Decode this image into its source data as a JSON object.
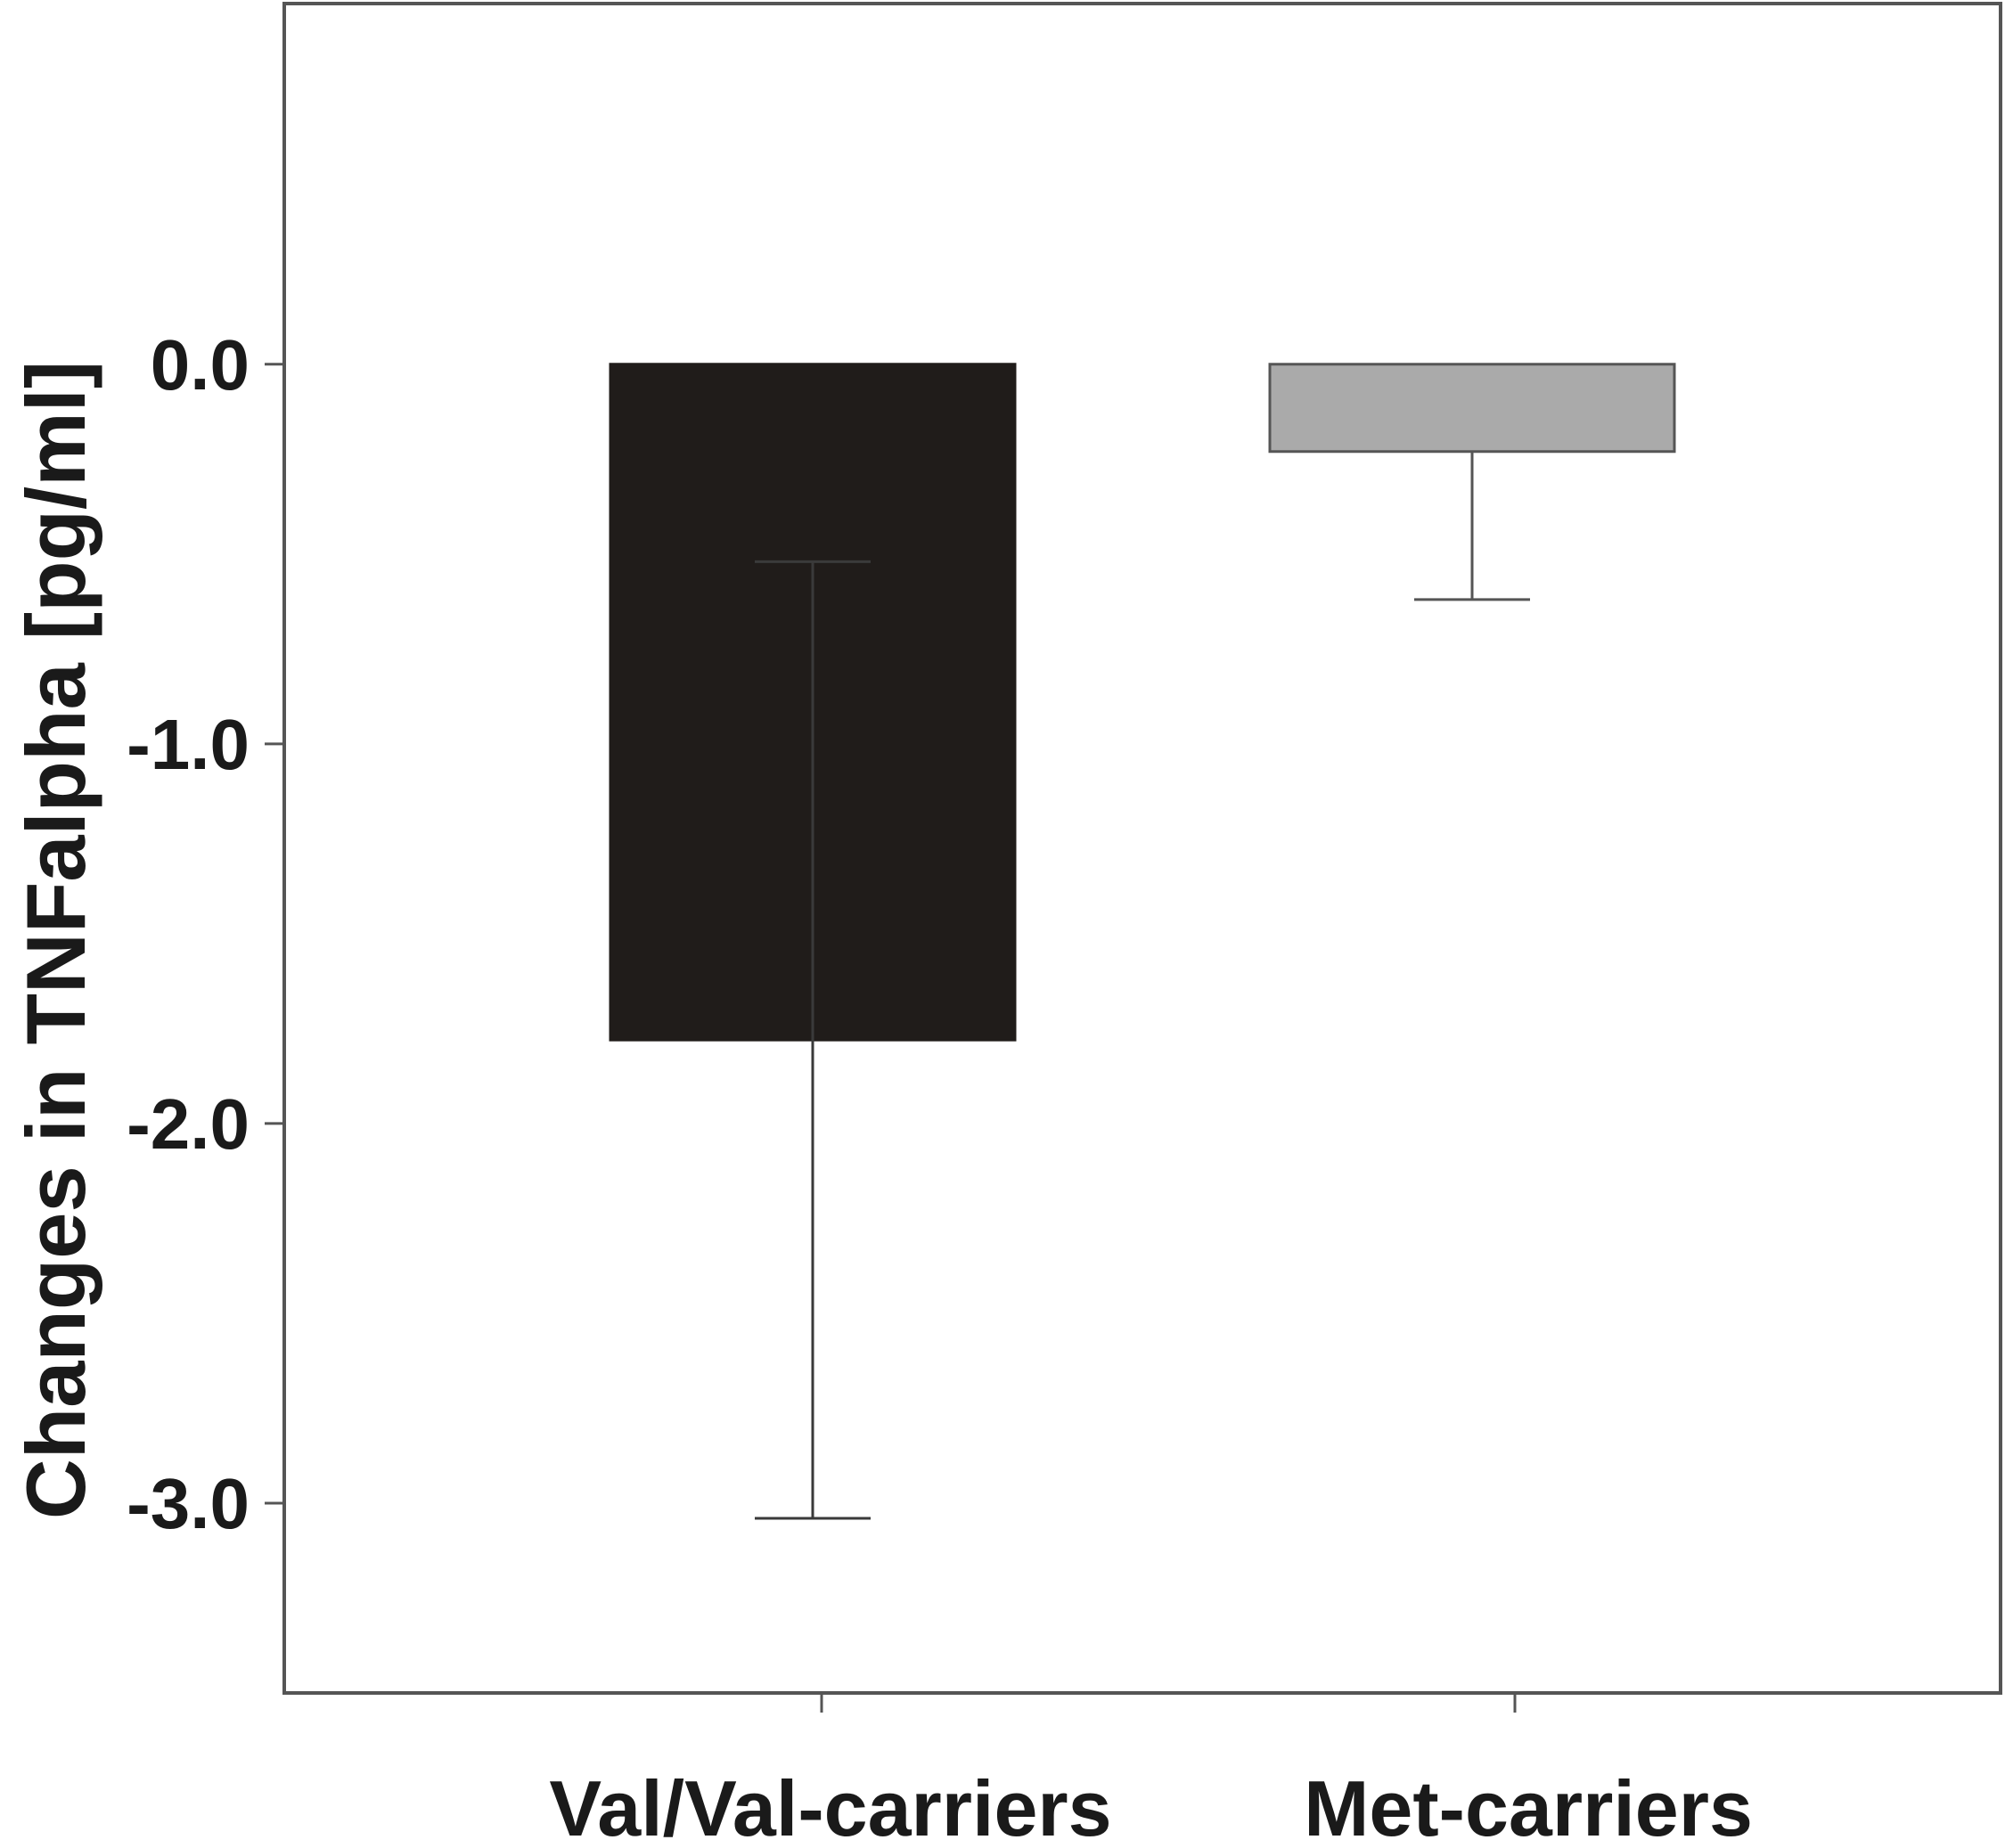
{
  "chart_data": {
    "type": "bar",
    "categories": [
      "Val/Val-carriers",
      "Met-carriers"
    ],
    "values": [
      -1.78,
      -0.23
    ],
    "error_bars": [
      {
        "lower": -3.04,
        "upper": -0.52
      },
      {
        "lower": -0.62,
        "upper": -0.23
      }
    ],
    "bar_colors": [
      "#201c1a",
      "#aaaaaa"
    ],
    "title": "",
    "xlabel": "",
    "ylabel": "Changes in TNFalpha  [pg/ml]",
    "ylim": [
      -3.5,
      0.95
    ],
    "yticks": [
      0.0,
      -1.0,
      -2.0,
      -3.0
    ],
    "ytick_labels": [
      "0.0",
      "-1.0",
      "-2.0",
      "-3.0"
    ],
    "grid": false,
    "legend": "none"
  }
}
